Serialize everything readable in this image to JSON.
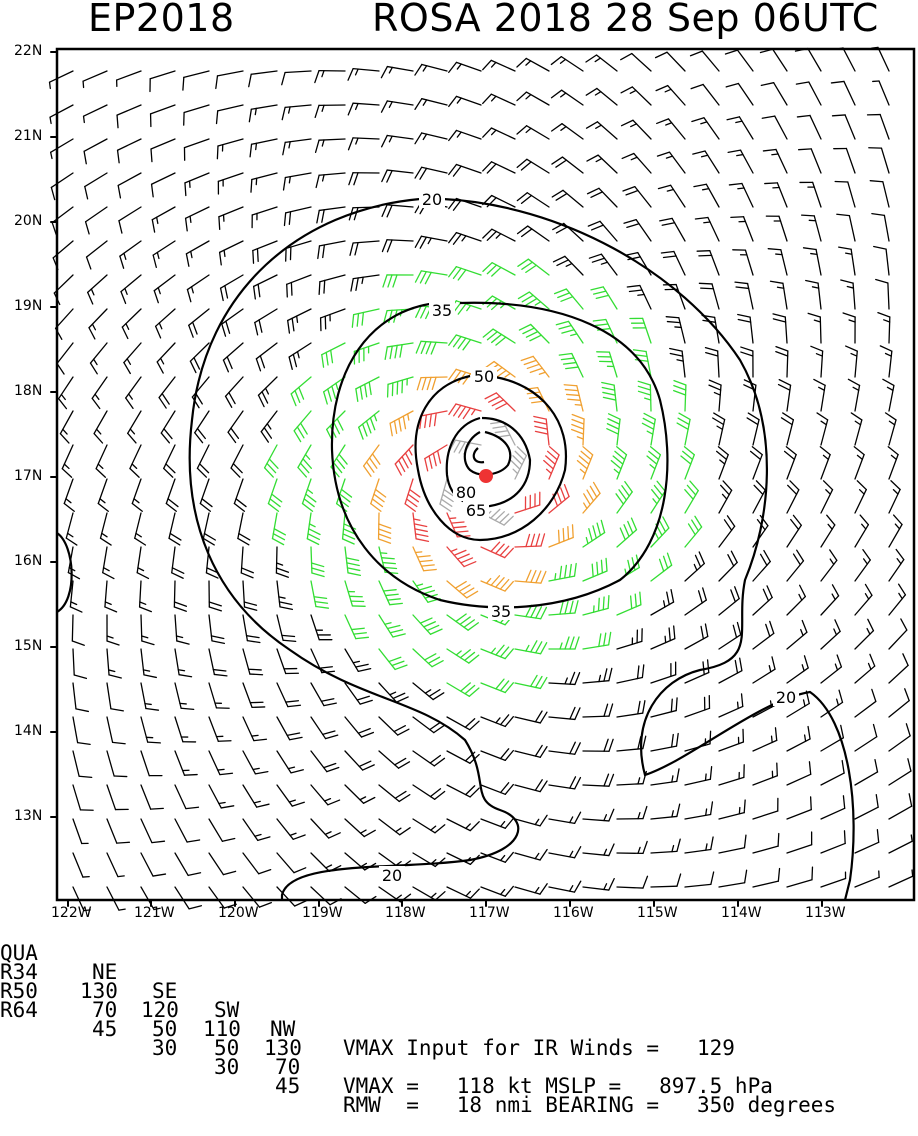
{
  "header": {
    "basin_year": "EP2018",
    "storm_info": "ROSA 2018 28 Sep 06UTC"
  },
  "axes": {
    "lat_labels": [
      "22N",
      "21N",
      "20N",
      "19N",
      "18N",
      "17N",
      "16N",
      "15N",
      "14N",
      "13N"
    ],
    "lon_labels": [
      "122W",
      "121W",
      "120W",
      "119W",
      "118W",
      "117W",
      "116W",
      "115W",
      "114W",
      "113W"
    ]
  },
  "contours": {
    "labels": [
      "20",
      "35",
      "50",
      "65",
      "80",
      "35",
      "20",
      "20"
    ]
  },
  "colors": {
    "low_wind": "#000000",
    "tropical_storm": "#33dd33",
    "strong": "#f0a030",
    "hurricane": "#e84040",
    "core": "#aaaaaa",
    "center": "#ee3333"
  },
  "footer": {
    "quad_header": [
      "QUA",
      "NE",
      "SE",
      "SW",
      "NW"
    ],
    "r34": [
      "R34",
      "130",
      "120",
      "110",
      "130"
    ],
    "r50": [
      "R50",
      "70",
      "50",
      "50",
      "70"
    ],
    "r64": [
      "R64",
      "45",
      "30",
      "30",
      "45"
    ],
    "vmax_input": "VMAX Input for IR Winds =   129",
    "vmax_line": "VMAX =   118 kt MSLP =   897.5 hPa",
    "rmw_line": "RMW  =   18 nmi BEARING =   350 degrees"
  }
}
